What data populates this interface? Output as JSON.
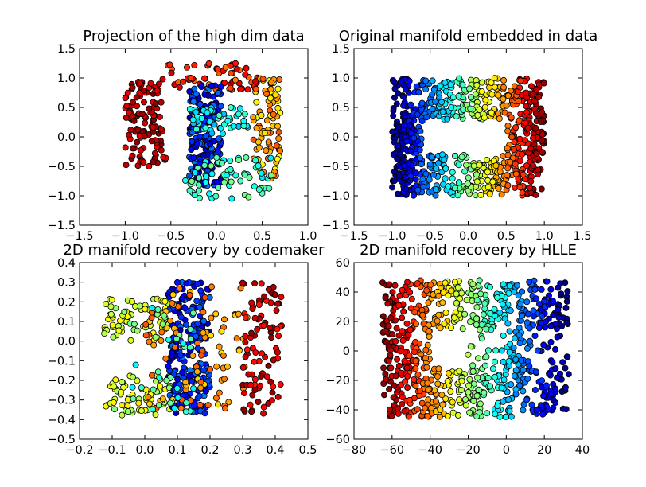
{
  "chart_data": [
    {
      "type": "scatter",
      "title": "Projection of the high dim data",
      "xlim": [
        -1.5,
        1.0
      ],
      "ylim": [
        -1.5,
        1.5
      ],
      "xticks": [
        "−1.5",
        "−1.0",
        "−0.5",
        "0.0",
        "0.5",
        "1.0"
      ],
      "yticks": [
        "−1.5",
        "−1.0",
        "−0.5",
        "0.0",
        "0.5",
        "1.0",
        "1.5"
      ],
      "grid": false,
      "colormap": "jet",
      "point_groups": [
        {
          "name": "left-red-cluster",
          "color_range": [
            0.88,
            1.0
          ],
          "xrange": [
            -1.0,
            -0.55
          ],
          "yrange": [
            -0.5,
            1.0
          ],
          "count": 120
        },
        {
          "name": "top-arc",
          "color_range": [
            0.75,
            0.95
          ],
          "xrange": [
            -0.55,
            0.45
          ],
          "yrange": [
            0.8,
            1.25
          ],
          "count": 60
        },
        {
          "name": "right-orange",
          "color_range": [
            0.6,
            0.8
          ],
          "xrange": [
            0.4,
            0.7
          ],
          "yrange": [
            -0.7,
            1.0
          ],
          "count": 90
        },
        {
          "name": "center-blue-column",
          "color_range": [
            0.05,
            0.25
          ],
          "xrange": [
            -0.3,
            0.05
          ],
          "yrange": [
            -0.85,
            0.9
          ],
          "count": 180
        },
        {
          "name": "lower-green-arc",
          "color_range": [
            0.35,
            0.5
          ],
          "xrange": [
            -0.35,
            0.6
          ],
          "yrange": [
            -1.05,
            -0.35
          ],
          "count": 70
        },
        {
          "name": "middle-cyan-green",
          "color_range": [
            0.3,
            0.45
          ],
          "xrange": [
            -0.3,
            0.35
          ],
          "yrange": [
            0.05,
            0.5
          ],
          "count": 50
        }
      ]
    },
    {
      "type": "scatter",
      "title": "Original manifold embedded in data",
      "xlim": [
        -1.5,
        1.5
      ],
      "ylim": [
        -1.5,
        1.5
      ],
      "xticks": [
        "−1.5",
        "−1.0",
        "−0.5",
        "0.0",
        "0.5",
        "1.0",
        "1.5"
      ],
      "yticks": [
        "−1.5",
        "−1.0",
        "−0.5",
        "0.0",
        "0.5",
        "1.0",
        "1.5"
      ],
      "grid": false,
      "colormap": "jet",
      "point_groups": [
        {
          "name": "frame-top",
          "color_range": "by-x",
          "xrange": [
            -1.0,
            1.0
          ],
          "yrange": [
            0.3,
            1.0
          ],
          "count": 300
        },
        {
          "name": "frame-bottom",
          "color_range": "by-x",
          "xrange": [
            -1.0,
            1.0
          ],
          "yrange": [
            -1.0,
            -0.3
          ],
          "count": 300
        },
        {
          "name": "frame-left",
          "color_range": "by-x",
          "xrange": [
            -1.0,
            -0.6
          ],
          "yrange": [
            -0.3,
            0.3
          ],
          "count": 80
        },
        {
          "name": "frame-right",
          "color_range": "by-x",
          "xrange": [
            0.5,
            1.0
          ],
          "yrange": [
            -0.3,
            0.3
          ],
          "count": 80
        }
      ]
    },
    {
      "type": "scatter",
      "title": "2D manifold recovery by codemaker",
      "xlim": [
        -0.2,
        0.5
      ],
      "ylim": [
        -0.5,
        0.4
      ],
      "xticks": [
        "−0.2",
        "−0.1",
        "0.0",
        "0.1",
        "0.2",
        "0.3",
        "0.4",
        "0.5"
      ],
      "yticks": [
        "−0.5",
        "−0.4",
        "−0.3",
        "−0.2",
        "−0.1",
        "0.0",
        "0.1",
        "0.2",
        "0.3",
        "0.4"
      ],
      "grid": false,
      "colormap": "jet",
      "point_groups": [
        {
          "name": "left-upper-yellow",
          "color_range": [
            0.5,
            0.65
          ],
          "xrange": [
            -0.13,
            0.08
          ],
          "yrange": [
            0.0,
            0.22
          ],
          "count": 70
        },
        {
          "name": "left-lower-yellow",
          "color_range": [
            0.5,
            0.65
          ],
          "xrange": [
            -0.12,
            0.08
          ],
          "yrange": [
            -0.38,
            -0.17
          ],
          "count": 70
        },
        {
          "name": "blue-column",
          "color_range": [
            0.05,
            0.25
          ],
          "xrange": [
            0.07,
            0.2
          ],
          "yrange": [
            -0.37,
            0.3
          ],
          "count": 220
        },
        {
          "name": "orange-scatter",
          "color_range": [
            0.65,
            0.8
          ],
          "xrange": [
            0.0,
            0.32
          ],
          "yrange": [
            -0.36,
            0.3
          ],
          "count": 90
        },
        {
          "name": "right-red-column",
          "color_range": [
            0.85,
            1.0
          ],
          "xrange": [
            0.3,
            0.42
          ],
          "yrange": [
            -0.37,
            0.3
          ],
          "count": 90
        },
        {
          "name": "green-mid",
          "color_range": [
            0.35,
            0.5
          ],
          "xrange": [
            -0.05,
            0.15
          ],
          "yrange": [
            -0.38,
            0.2
          ],
          "count": 35
        }
      ]
    },
    {
      "type": "scatter",
      "title": "2D manifold recovery by HLLE",
      "xlim": [
        -80,
        40
      ],
      "ylim": [
        -60,
        60
      ],
      "xticks": [
        "−80",
        "−60",
        "−40",
        "−20",
        "0",
        "20",
        "40"
      ],
      "yticks": [
        "−60",
        "−40",
        "−20",
        "0",
        "20",
        "40",
        "60"
      ],
      "grid": false,
      "colormap": "jet",
      "point_groups": [
        {
          "name": "frame-top",
          "color_range": "by-x-reversed",
          "xrange": [
            -65,
            33
          ],
          "yrange": [
            15,
            48
          ],
          "count": 300
        },
        {
          "name": "frame-bottom",
          "color_range": "by-x-reversed",
          "xrange": [
            -65,
            33
          ],
          "yrange": [
            -45,
            -12
          ],
          "count": 300
        },
        {
          "name": "frame-left",
          "color_range": "by-x-reversed",
          "xrange": [
            -65,
            -40
          ],
          "yrange": [
            -12,
            15
          ],
          "count": 80
        },
        {
          "name": "frame-right",
          "color_range": "by-x-reversed",
          "xrange": [
            -22,
            33
          ],
          "yrange": [
            -12,
            15
          ],
          "count": 70
        }
      ]
    }
  ]
}
